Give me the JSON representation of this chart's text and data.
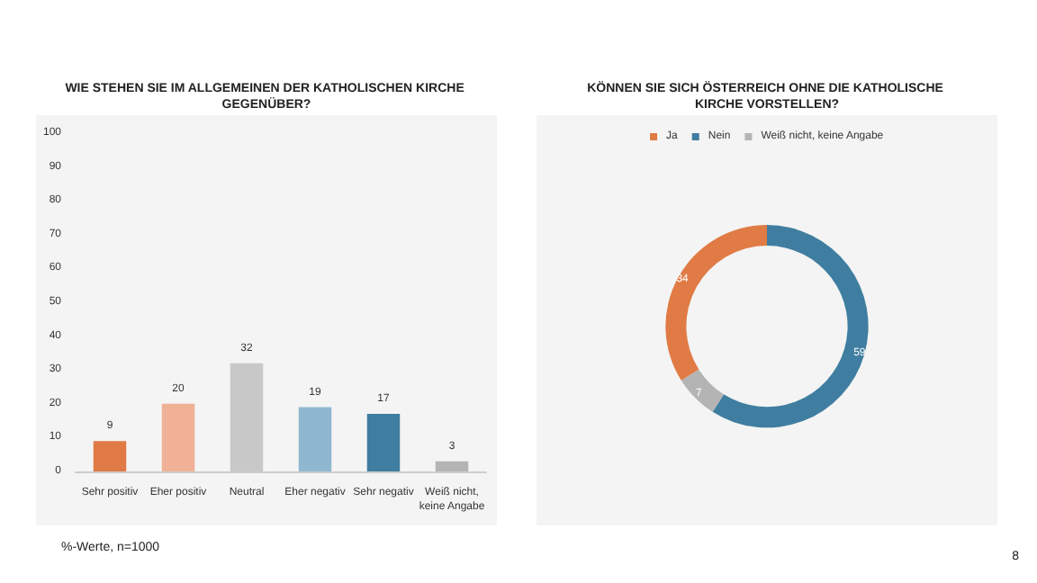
{
  "chart_data": [
    {
      "type": "bar",
      "title": "WIE STEHEN SIE IM ALLGEMEINEN DER KATHOLISCHEN KIRCHE GEGENÜBER?",
      "categories": [
        "Sehr positiv",
        "Eher positiv",
        "Neutral",
        "Eher negativ",
        "Sehr negativ",
        "Weiß nicht,\nkeine Angabe"
      ],
      "values": [
        9,
        20,
        32,
        19,
        17,
        3
      ],
      "colors": [
        "#e07b45",
        "#f0b196",
        "#c8c8c8",
        "#8fb7cf",
        "#3f7ea0",
        "#b4b4b4"
      ],
      "ylim": [
        0,
        100
      ],
      "yticks": [
        0,
        10,
        20,
        30,
        40,
        50,
        60,
        70,
        80,
        90,
        100
      ],
      "data_labels": true,
      "annotations": [
        "%-Werte, n=1000",
        "8"
      ]
    },
    {
      "type": "donut",
      "title": "KÖNNEN SIE SICH ÖSTERREICH OHNE DIE KATHOLISCHE KIRCHE VORSTELLEN?",
      "categories": [
        "Ja",
        "Nein",
        "Weiß nicht, keine Angabe"
      ],
      "values": [
        34,
        59,
        7
      ],
      "colors": [
        "#e07b45",
        "#3f7ea0",
        "#b4b4b4"
      ],
      "data_labels": true,
      "legend": "top"
    }
  ]
}
